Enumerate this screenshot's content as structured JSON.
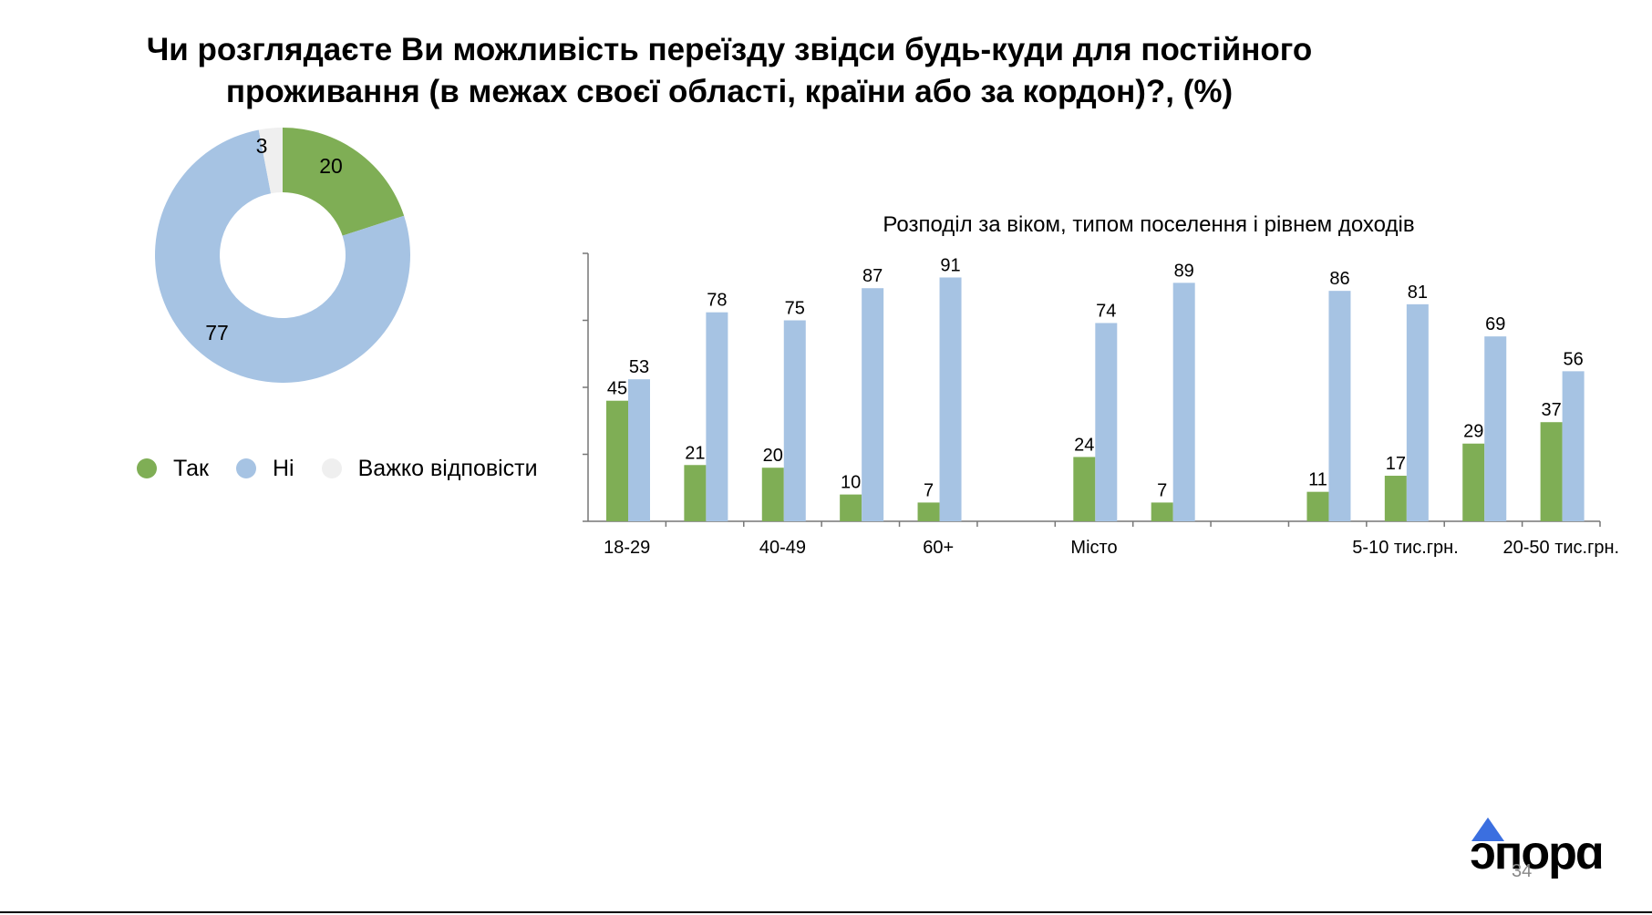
{
  "page": {
    "title": "Чи розглядаєте Ви можливість переїзду звідси будь-куди для постійного проживання (в межах своєї області, країни або за кордон)?, (%)",
    "page_number": "34",
    "logo_text": "ɔпорɑ"
  },
  "colors": {
    "yes": "#7fae55",
    "no": "#a6c3e3",
    "hard": "#efefef"
  },
  "legend": [
    {
      "label": "Так",
      "color": "#7fae55"
    },
    {
      "label": "Ні",
      "color": "#a6c3e3"
    },
    {
      "label": "Важко відповісти",
      "color": "#efefef"
    }
  ],
  "chart_data": [
    {
      "type": "pie",
      "labels": [
        "Так",
        "Ні",
        "Важко відповісти"
      ],
      "values": [
        20,
        77,
        3
      ],
      "colors": [
        "#7fae55",
        "#a6c3e3",
        "#efefef"
      ],
      "legend_position": "bottom"
    },
    {
      "type": "bar",
      "title": "Розподіл за віком, типом поселення і рівнем доходів",
      "categories": [
        "18-29",
        "",
        "40-49",
        "",
        "60+",
        "",
        "Місто",
        "",
        "",
        "",
        "5-10 тис.грн.",
        "",
        "20-50 тис.грн."
      ],
      "series": [
        {
          "name": "Так",
          "values": [
            45,
            21,
            20,
            10,
            7,
            null,
            24,
            7,
            null,
            11,
            17,
            29,
            37
          ]
        },
        {
          "name": "Ні",
          "values": [
            53,
            78,
            75,
            87,
            91,
            null,
            74,
            89,
            null,
            86,
            81,
            69,
            56
          ]
        }
      ],
      "ylim": [
        0,
        100
      ],
      "grid": false
    }
  ]
}
